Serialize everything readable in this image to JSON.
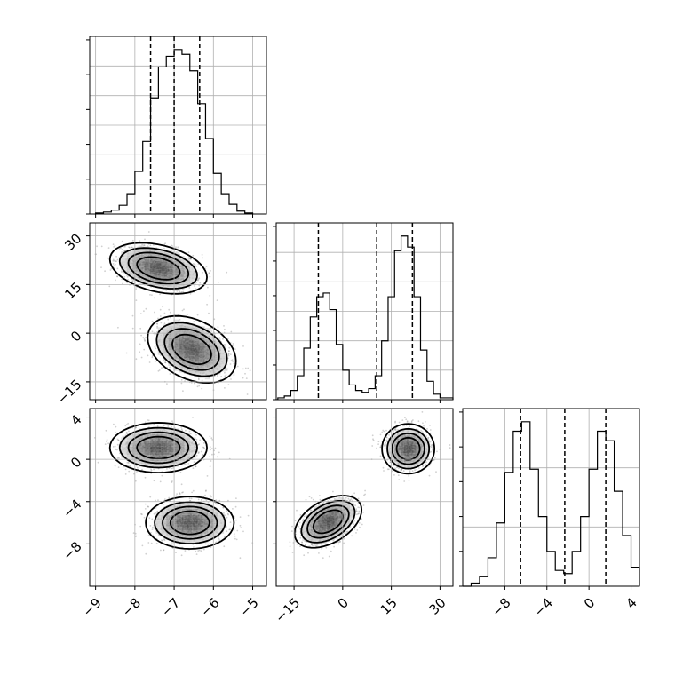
{
  "chart_data": {
    "type": "corner",
    "params": [
      {
        "ticks": [
          -9,
          -8,
          -7,
          -6,
          -5
        ],
        "tick_labels": [
          "−9",
          "−8",
          "−7",
          "−6",
          "−5"
        ],
        "range": [
          -9.15,
          -4.65
        ],
        "quantiles": [
          -7.6,
          -7.0,
          -6.35
        ]
      },
      {
        "ticks": [
          -15,
          0,
          15,
          30
        ],
        "tick_labels": [
          "−15",
          "0",
          "15",
          "30"
        ],
        "range": [
          -20.5,
          34.0
        ],
        "quantiles": [
          -7.5,
          10.5,
          21.5
        ]
      },
      {
        "ticks": [
          -8,
          -4,
          0,
          4
        ],
        "tick_labels": [
          "−8",
          "−4",
          "0",
          "4"
        ],
        "range": [
          -12.0,
          4.8
        ],
        "quantiles": [
          -6.5,
          -2.3,
          1.6
        ]
      }
    ],
    "histograms": [
      {
        "param": 0,
        "bin_edges": [
          -9.0,
          -8.8,
          -8.6,
          -8.4,
          -8.2,
          -8.0,
          -7.8,
          -7.6,
          -7.4,
          -7.2,
          -7.0,
          -6.8,
          -6.6,
          -6.4,
          -6.2,
          -6.0,
          -5.8,
          -5.6,
          -5.4,
          -5.2,
          -5.0
        ],
        "counts": [
          1,
          2,
          4,
          9,
          21,
          44,
          75,
          120,
          152,
          163,
          170,
          165,
          148,
          114,
          78,
          42,
          21,
          10,
          3,
          1
        ]
      },
      {
        "param": 1,
        "bin_edges": [
          -20,
          -18,
          -16,
          -14,
          -12,
          -10,
          -8,
          -6,
          -4,
          -2,
          0,
          2,
          4,
          6,
          8,
          10,
          12,
          14,
          16,
          18,
          20,
          22,
          24,
          26,
          28,
          30,
          32,
          34
        ],
        "counts": [
          1,
          2,
          5,
          13,
          28,
          45,
          56,
          58,
          49,
          30,
          16,
          8,
          5,
          4,
          6,
          13,
          32,
          56,
          81,
          89,
          83,
          56,
          27,
          10,
          3,
          1,
          1
        ]
      },
      {
        "param": 2,
        "bin_edges": [
          -12.0,
          -11.2,
          -10.4,
          -9.6,
          -8.8,
          -8.0,
          -7.2,
          -6.4,
          -5.6,
          -4.8,
          -4.0,
          -3.2,
          -2.4,
          -1.6,
          -0.8,
          0.0,
          0.8,
          1.6,
          2.4,
          3.2,
          4.0,
          4.8
        ],
        "counts": [
          0,
          1,
          3,
          9,
          20,
          36,
          49,
          52,
          37,
          22,
          11,
          5,
          4,
          11,
          22,
          37,
          49,
          46,
          30,
          16,
          6
        ]
      }
    ],
    "pairs": [
      {
        "x_param": 0,
        "y_param": 1,
        "clusters": [
          {
            "center": [
              -7.4,
              20
            ],
            "spread": [
              0.55,
              3.5
            ],
            "corr": -0.35,
            "weight": 1
          },
          {
            "center": [
              -6.55,
              -5
            ],
            "spread": [
              0.5,
              4.6
            ],
            "corr": -0.35,
            "weight": 1
          }
        ],
        "contour_levels": [
          0.4,
          0.6,
          0.8
        ]
      },
      {
        "x_param": 0,
        "y_param": 2,
        "clusters": [
          {
            "center": [
              -7.4,
              1.1
            ],
            "spread": [
              0.55,
              1.05
            ],
            "corr": 0.0,
            "weight": 1
          },
          {
            "center": [
              -6.6,
              -6.0
            ],
            "spread": [
              0.5,
              1.1
            ],
            "corr": 0.0,
            "weight": 1
          }
        ],
        "contour_levels": [
          0.4,
          0.6,
          0.8
        ]
      },
      {
        "x_param": 1,
        "y_param": 2,
        "clusters": [
          {
            "center": [
              -4.5,
              -5.9
            ],
            "spread": [
              4.6,
              1.1
            ],
            "corr": 0.45,
            "weight": 1
          },
          {
            "center": [
              20.2,
              1.0
            ],
            "spread": [
              3.6,
              1.05
            ],
            "corr": 0.0,
            "weight": 1
          }
        ],
        "contour_levels": [
          0.4,
          0.6,
          0.8
        ]
      }
    ],
    "grid": true
  }
}
